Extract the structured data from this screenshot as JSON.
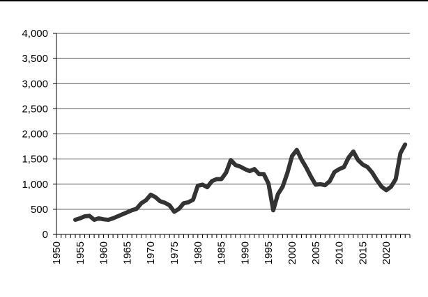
{
  "chart_data": {
    "type": "line",
    "title": "",
    "xlabel": "",
    "ylabel": "",
    "ylim": [
      0,
      4000
    ],
    "xlim": [
      1950,
      2025
    ],
    "grid": "horizontal",
    "legend": "none",
    "y_ticks": [
      0,
      500,
      1000,
      1500,
      2000,
      2500,
      3000,
      3500,
      4000
    ],
    "y_tick_labels": [
      "0",
      "500",
      "1,000",
      "1,500",
      "2,000",
      "2,500",
      "3,000",
      "3,500",
      "4,000"
    ],
    "x_tick_labels": [
      "1950",
      "1955",
      "1960",
      "1965",
      "1970",
      "1975",
      "1980",
      "1985",
      "1990",
      "1995",
      "2000",
      "2005",
      "2010",
      "2015",
      "2020"
    ],
    "x": [
      1954,
      1955,
      1956,
      1957,
      1958,
      1959,
      1960,
      1961,
      1962,
      1963,
      1964,
      1965,
      1966,
      1967,
      1968,
      1969,
      1970,
      1971,
      1972,
      1973,
      1974,
      1975,
      1976,
      1977,
      1978,
      1979,
      1980,
      1981,
      1982,
      1983,
      1984,
      1985,
      1986,
      1987,
      1988,
      1989,
      1990,
      1991,
      1992,
      1993,
      1994,
      1995,
      1996,
      1997,
      1998,
      1999,
      2000,
      2001,
      2002,
      2003,
      2004,
      2005,
      2006,
      2007,
      2008,
      2009,
      2010,
      2011,
      2012,
      2013,
      2014,
      2015,
      2016,
      2017,
      2018,
      2019,
      2020,
      2021,
      2022,
      2023,
      2024
    ],
    "series": [
      {
        "name": "series",
        "color": "#333333",
        "values": [
          290,
          320,
          360,
          370,
          290,
          320,
          300,
          290,
          320,
          360,
          400,
          440,
          480,
          510,
          620,
          680,
          790,
          740,
          660,
          630,
          580,
          450,
          510,
          620,
          640,
          690,
          970,
          990,
          940,
          1060,
          1100,
          1100,
          1230,
          1480,
          1380,
          1350,
          1300,
          1260,
          1300,
          1200,
          1200,
          1010,
          480,
          800,
          950,
          1220,
          1560,
          1680,
          1490,
          1330,
          1150,
          990,
          1000,
          980,
          1060,
          1240,
          1300,
          1340,
          1530,
          1650,
          1480,
          1390,
          1340,
          1230,
          1080,
          950,
          880,
          950,
          1100,
          1620,
          1790
        ]
      }
    ]
  }
}
